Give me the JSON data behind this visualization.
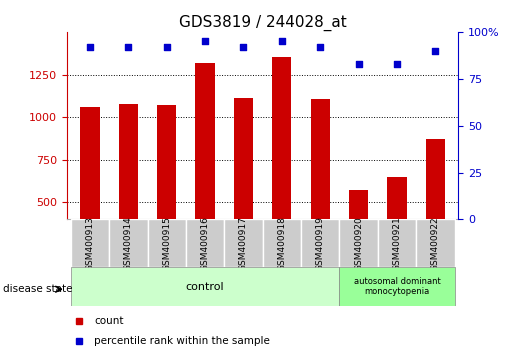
{
  "title": "GDS3819 / 244028_at",
  "samples": [
    "GSM400913",
    "GSM400914",
    "GSM400915",
    "GSM400916",
    "GSM400917",
    "GSM400918",
    "GSM400919",
    "GSM400920",
    "GSM400921",
    "GSM400922"
  ],
  "counts": [
    1060,
    1075,
    1070,
    1320,
    1110,
    1350,
    1105,
    575,
    650,
    870
  ],
  "percentile_ranks": [
    92,
    92,
    92,
    95,
    92,
    95,
    92,
    83,
    83,
    90
  ],
  "ylim_left": [
    400,
    1500
  ],
  "ylim_right": [
    0,
    100
  ],
  "yticks_left": [
    500,
    750,
    1000,
    1250
  ],
  "yticks_right": [
    0,
    25,
    50,
    75,
    100
  ],
  "bar_color": "#cc0000",
  "dot_color": "#0000cc",
  "bar_width": 0.5,
  "grid_color": "#000000",
  "control_group": [
    0,
    1,
    2,
    3,
    4,
    5,
    6
  ],
  "disease_group": [
    7,
    8,
    9
  ],
  "control_label": "control",
  "disease_label": "autosomal dominant\nmonocytopenia",
  "control_bg": "#ccffcc",
  "disease_bg": "#99ff99",
  "group_row_bg": "#cccccc",
  "legend_count_label": "count",
  "legend_percentile_label": "percentile rank within the sample",
  "disease_state_label": "disease state",
  "title_fontsize": 11,
  "tick_fontsize": 8
}
